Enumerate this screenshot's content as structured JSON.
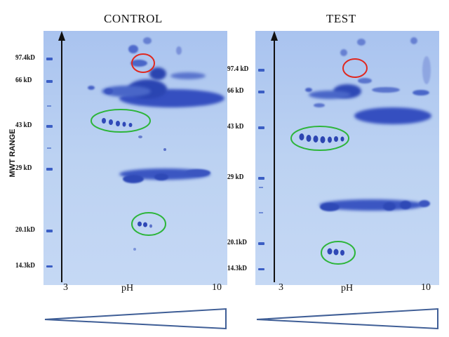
{
  "panels": {
    "control": {
      "title": "CONTROL",
      "markers": [
        "97.4kD",
        "66 kD",
        "43 kD",
        "29 kD",
        "20.1kD",
        "14.3kD"
      ],
      "ph_label": "pH",
      "ph_min": "3",
      "ph_max": "10"
    },
    "test": {
      "title": "TEST",
      "markers": [
        "97.4 kD",
        "66 kD",
        "43 kD",
        "29 kD",
        "20.1kD",
        "14.3kD"
      ],
      "ph_label": "pH",
      "ph_min": "3",
      "ph_max": "10"
    }
  },
  "y_axis_label": "MWT RANGE",
  "colors": {
    "gel_background": "#b7cff0",
    "protein_band": "#2f4db8",
    "highlight_red": "#e0281f",
    "highlight_green": "#2db53a",
    "gradient_outline": "#3f5e96"
  }
}
